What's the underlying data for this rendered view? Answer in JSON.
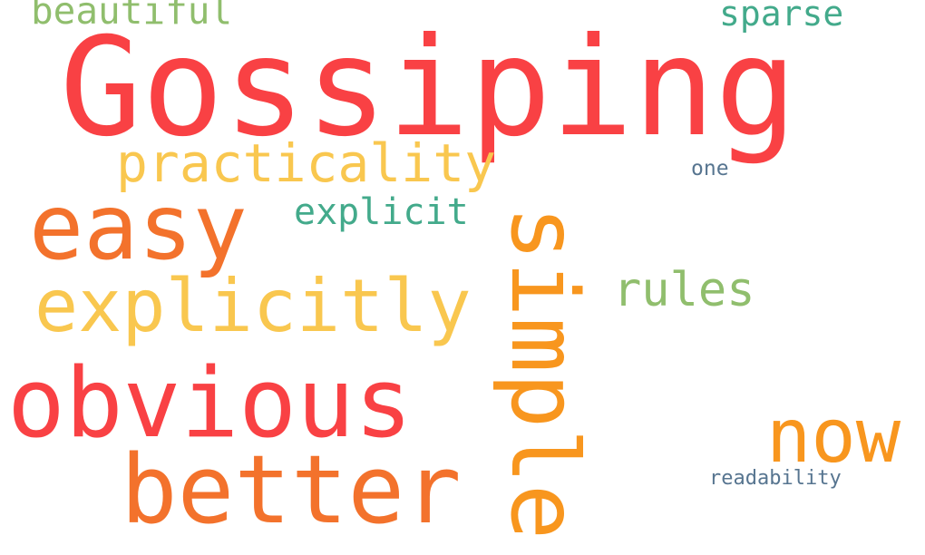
{
  "words": [
    {
      "text": "Gossiping",
      "color": "#f94144"
    },
    {
      "text": "beautiful",
      "color": "#90be6d"
    },
    {
      "text": "sparse",
      "color": "#43aa8b"
    },
    {
      "text": "practicality",
      "color": "#f9c74f"
    },
    {
      "text": "one",
      "color": "#577590"
    },
    {
      "text": "easy",
      "color": "#f3722c"
    },
    {
      "text": "explicit",
      "color": "#43aa8b"
    },
    {
      "text": "rules",
      "color": "#90be6d"
    },
    {
      "text": "explicitly",
      "color": "#f9c74f"
    },
    {
      "text": "simple",
      "color": "#f8961e"
    },
    {
      "text": "obvious",
      "color": "#f94144"
    },
    {
      "text": "now",
      "color": "#f8961e"
    },
    {
      "text": "better",
      "color": "#f3722c"
    },
    {
      "text": "readability",
      "color": "#577590"
    }
  ]
}
